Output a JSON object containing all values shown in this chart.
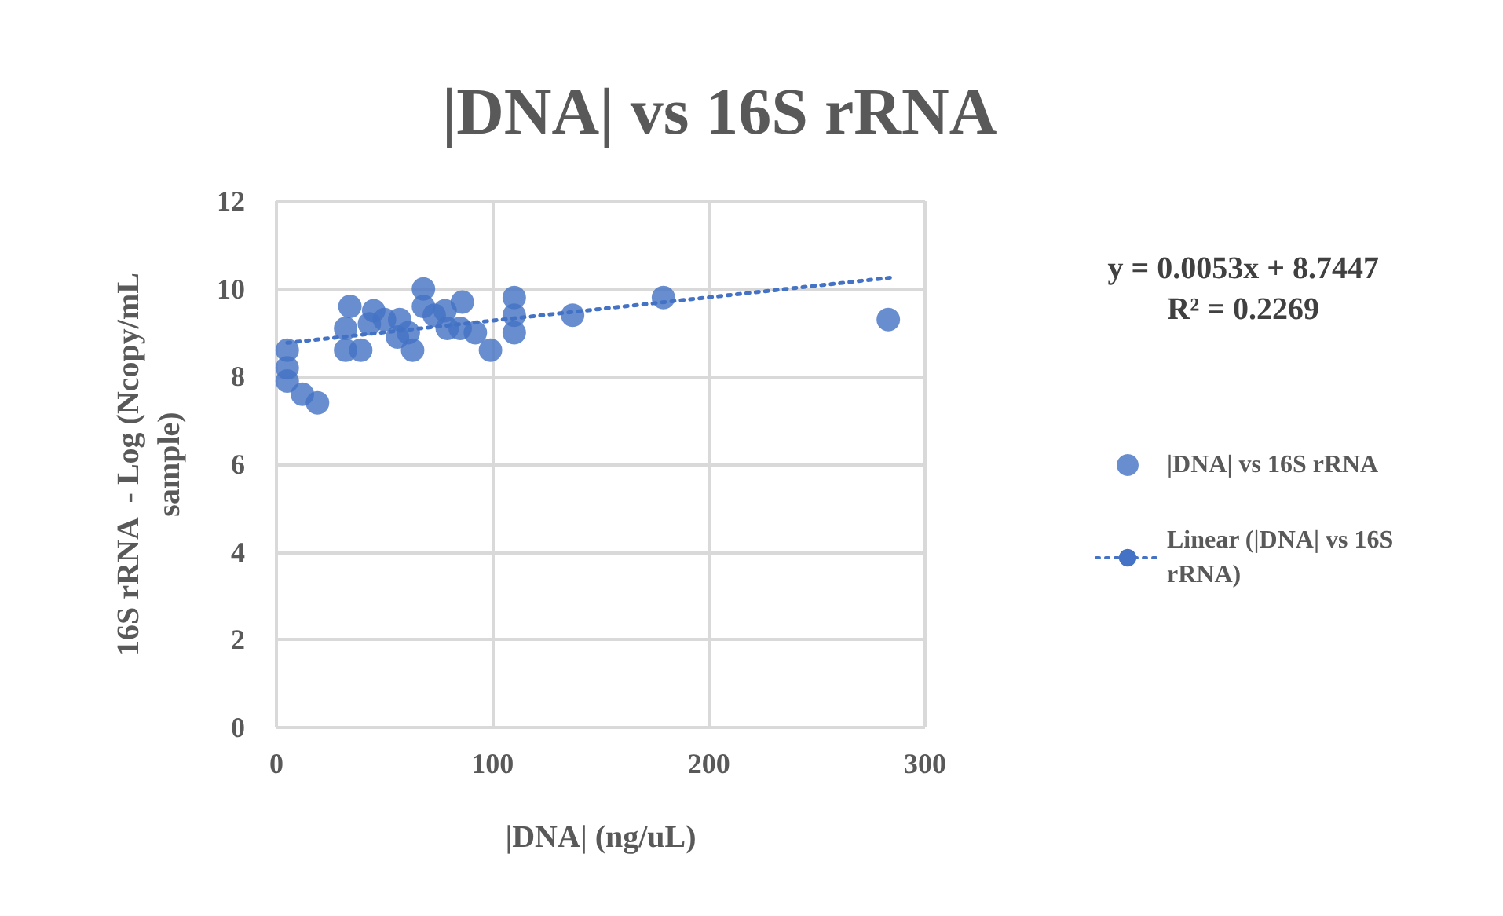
{
  "chart_data": {
    "type": "scatter",
    "title": "|DNA| vs 16S rRNA",
    "xlabel": "|DNA| (ng/uL)",
    "ylabel": "16S rRNA  - Log (Ncopy/mL sample)",
    "xlim": [
      0,
      300
    ],
    "xticks": [
      0,
      100,
      200,
      300
    ],
    "ylim": [
      0,
      12
    ],
    "yticks": [
      0,
      2,
      4,
      6,
      8,
      10,
      12
    ],
    "grid": true,
    "legend": "right",
    "marker": "circle",
    "annotations": [
      "y = 0.0053x + 8.7447\nR² = 0.2269"
    ],
    "series": [
      {
        "name": "|DNA| vs 16S rRNA",
        "color": "#4472c4",
        "x": [
          5,
          5,
          5,
          12,
          19,
          32,
          32,
          34,
          39,
          43,
          45,
          50,
          56,
          57,
          61,
          63,
          68,
          68,
          73,
          78,
          79,
          85,
          86,
          92,
          99,
          110,
          110,
          110,
          137,
          179,
          283
        ],
        "values": [
          8.6,
          8.2,
          7.9,
          7.6,
          7.4,
          8.6,
          9.1,
          9.6,
          8.6,
          9.2,
          9.5,
          9.3,
          8.9,
          9.3,
          9.0,
          8.6,
          10.0,
          9.6,
          9.4,
          9.5,
          9.1,
          9.1,
          9.7,
          9.0,
          8.6,
          9.8,
          9.4,
          9.0,
          9.4,
          9.8,
          9.3
        ]
      },
      {
        "name": "Linear (|DNA| vs 16S rRNA)",
        "type": "line",
        "line_style": "dotted",
        "marker": "none",
        "color": "#4472c4",
        "x": [
          5,
          285
        ],
        "values": [
          8.77,
          10.26
        ]
      }
    ]
  }
}
